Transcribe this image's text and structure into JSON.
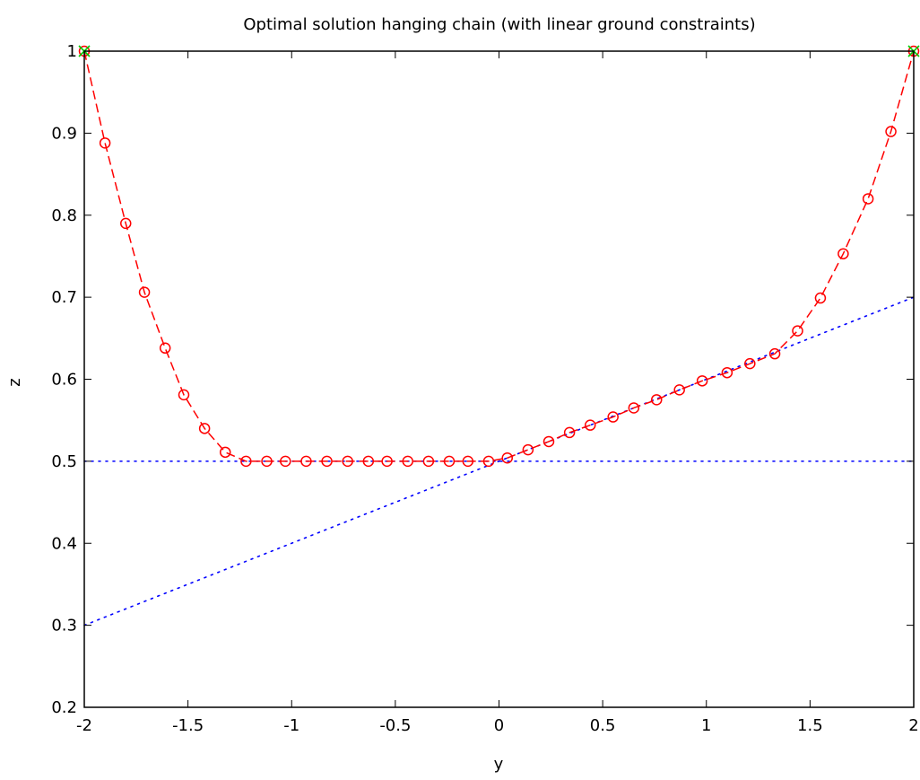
{
  "chart_data": {
    "type": "line",
    "title": "Optimal solution hanging chain (with linear ground constraints)",
    "xlabel": "y",
    "ylabel": "z",
    "xlim": [
      -2,
      2
    ],
    "ylim": [
      0.2,
      1
    ],
    "xticks": [
      -2,
      -1.5,
      -1,
      -0.5,
      0,
      0.5,
      1,
      1.5,
      2
    ],
    "xtick_labels": [
      "-2",
      "-1.5",
      "-1",
      "-0.5",
      "0",
      "0.5",
      "1",
      "1.5",
      "2"
    ],
    "yticks": [
      0.2,
      0.3,
      0.4,
      0.5,
      0.6,
      0.7,
      0.8,
      0.9,
      1
    ],
    "ytick_labels": [
      "0.2",
      "0.3",
      "0.4",
      "0.5",
      "0.6",
      "0.7",
      "0.8",
      "0.9",
      "1"
    ],
    "grid": false,
    "colors": {
      "chain": "#ff0000",
      "constraint": "#0000ff",
      "endpoint": "#00cc00"
    },
    "series": [
      {
        "style": "red dashed line with circle markers",
        "x": [
          -2.0,
          -1.9,
          -1.8,
          -1.71,
          -1.61,
          -1.52,
          -1.42,
          -1.32,
          -1.22,
          -1.12,
          -1.03,
          -0.93,
          -0.83,
          -0.73,
          -0.63,
          -0.54,
          -0.44,
          -0.34,
          -0.24,
          -0.15,
          -0.05,
          0.04,
          0.14,
          0.24,
          0.34,
          0.44,
          0.55,
          0.65,
          0.76,
          0.87,
          0.98,
          1.1,
          1.21,
          1.33,
          1.44,
          1.55,
          1.66,
          1.78,
          1.89,
          2.0
        ],
        "y": [
          1.0,
          0.888,
          0.79,
          0.706,
          0.638,
          0.581,
          0.54,
          0.511,
          0.5,
          0.5,
          0.5,
          0.5,
          0.5,
          0.5,
          0.5,
          0.5,
          0.5,
          0.5,
          0.5,
          0.5,
          0.5,
          0.504,
          0.514,
          0.524,
          0.535,
          0.544,
          0.554,
          0.565,
          0.575,
          0.587,
          0.598,
          0.608,
          0.619,
          0.631,
          0.659,
          0.699,
          0.753,
          0.82,
          0.902,
          1.0
        ]
      },
      {
        "style": "blue dotted line (ground constraint z >= 0.5)",
        "x": [
          -2,
          2
        ],
        "y": [
          0.5,
          0.5
        ]
      },
      {
        "style": "blue dotted line (ground constraint z >= 0.5 + 0.1 y)",
        "x": [
          -2,
          2
        ],
        "y": [
          0.3,
          0.7
        ]
      },
      {
        "style": "green x markers (fixed end points)",
        "x": [
          -2,
          2
        ],
        "y": [
          1,
          1
        ]
      }
    ]
  }
}
